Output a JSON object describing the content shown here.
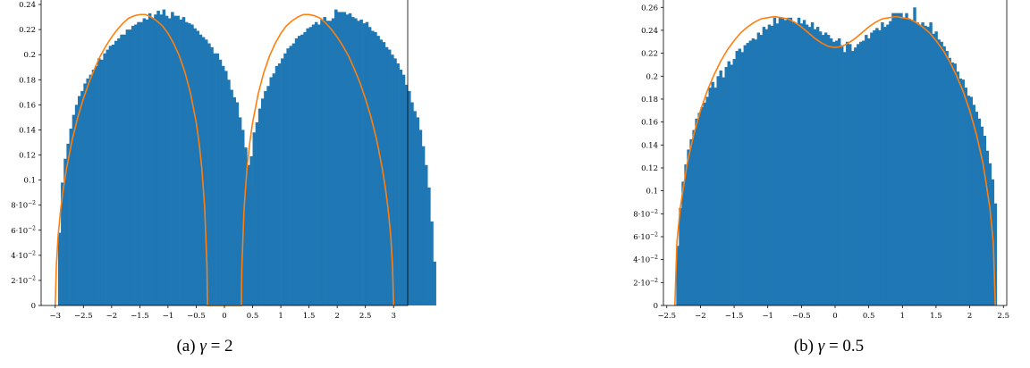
{
  "colors": {
    "bar": "#1f77b4",
    "curve": "#ff7f0e",
    "axis": "#000000"
  },
  "captions": [
    {
      "prefix": "(a) ",
      "symbol": "γ",
      "rest": " = 2"
    },
    {
      "prefix": "(b) ",
      "symbol": "γ",
      "rest": " = 0.5"
    }
  ],
  "chart_data": [
    {
      "type": "bar",
      "title": "",
      "xlabel": "",
      "ylabel": "",
      "xlim": [
        -3.25,
        3.25
      ],
      "ylim": [
        0,
        0.245
      ],
      "grid": false,
      "xticks": [
        -3,
        -2.5,
        -2,
        -1.5,
        -1,
        -0.5,
        0,
        0.5,
        1,
        1.5,
        2,
        2.5,
        3
      ],
      "xtick_labels": [
        "−3",
        "−2.5",
        "−2",
        "−1.5",
        "−1",
        "−0.5",
        "0",
        "0.5",
        "1",
        "1.5",
        "2",
        "2.5",
        "3"
      ],
      "yticks": [
        0,
        0.02,
        0.04,
        0.06,
        0.08,
        0.1,
        0.12,
        0.14,
        0.16,
        0.18,
        0.2,
        0.22,
        0.24
      ],
      "ytick_labels": [
        "0",
        "2·10^−2",
        "4·10^−2",
        "6·10^−2",
        "8·10^−2",
        "0.1",
        "0.12",
        "0.14",
        "0.16",
        "0.18",
        "0.2",
        "0.22",
        "0.24"
      ],
      "histogram": {
        "bin_width": 0.05,
        "bins": [
          {
            "start": -2.95,
            "values": [
              0.058,
              0.098,
              0.117,
              0.129,
              0.141,
              0.152,
              0.16,
              0.167,
              0.171,
              0.177,
              0.181,
              0.184,
              0.188,
              0.191,
              0.197,
              0.196,
              0.201,
              0.204,
              0.207,
              0.208,
              0.211,
              0.213,
              0.216,
              0.216,
              0.22,
              0.22,
              0.223,
              0.224,
              0.226,
              0.226,
              0.229,
              0.228,
              0.233,
              0.229,
              0.232,
              0.235,
              0.232,
              0.236,
              0.231,
              0.229,
              0.234,
              0.231,
              0.231,
              0.228,
              0.23,
              0.226,
              0.225,
              0.224,
              0.221,
              0.219,
              0.216,
              0.214,
              0.212,
              0.209,
              0.206,
              0.201,
              0.201,
              0.196,
              0.191,
              0.187,
              0.18,
              0.172,
              0.166,
              0.162,
              0.15,
              0.14,
              0.126,
              0.112,
              0.093,
              0.065,
              0.033,
              0.004,
              0.003,
              0.001
            ]
          },
          {
            "start": 0.25,
            "values": [
              0.004,
              0.05,
              0.079,
              0.105,
              0.119,
              0.138,
              0.146,
              0.157,
              0.165,
              0.171,
              0.175,
              0.182,
              0.185,
              0.191,
              0.193,
              0.197,
              0.201,
              0.205,
              0.207,
              0.209,
              0.213,
              0.215,
              0.216,
              0.218,
              0.221,
              0.222,
              0.224,
              0.226,
              0.224,
              0.228,
              0.23,
              0.227,
              0.227,
              0.229,
              0.236,
              0.234,
              0.234,
              0.234,
              0.232,
              0.233,
              0.23,
              0.229,
              0.227,
              0.228,
              0.225,
              0.226,
              0.222,
              0.219,
              0.218,
              0.215,
              0.212,
              0.21,
              0.206,
              0.204,
              0.2,
              0.197,
              0.193,
              0.188,
              0.184,
              0.176,
              0.171,
              0.162,
              0.155,
              0.15,
              0.14,
              0.127,
              0.112,
              0.094,
              0.067,
              0.035
            ]
          }
        ]
      },
      "density_curve": {
        "x": [
          -3.0,
          -2.98,
          -2.95,
          -2.9,
          -2.85,
          -2.8,
          -2.7,
          -2.6,
          -2.5,
          -2.4,
          -2.3,
          -2.2,
          -2.1,
          -2.0,
          -1.9,
          -1.8,
          -1.7,
          -1.6,
          -1.5,
          -1.4,
          -1.3,
          -1.2,
          -1.1,
          -1.0,
          -0.9,
          -0.8,
          -0.7,
          -0.6,
          -0.5,
          -0.45,
          -0.4,
          -0.35,
          -0.31,
          -0.3,
          0.0,
          0.3,
          0.31,
          0.35,
          0.4,
          0.45,
          0.5,
          0.6,
          0.7,
          0.8,
          0.9,
          1.0,
          1.1,
          1.2,
          1.3,
          1.4,
          1.5,
          1.6,
          1.7,
          1.8,
          1.9,
          2.0,
          2.1,
          2.2,
          2.3,
          2.4,
          2.5,
          2.6,
          2.7,
          2.8,
          2.85,
          2.9,
          2.95,
          2.98,
          3.0
        ],
        "y": [
          0,
          0.032,
          0.055,
          0.078,
          0.095,
          0.109,
          0.132,
          0.15,
          0.165,
          0.178,
          0.189,
          0.199,
          0.207,
          0.214,
          0.22,
          0.225,
          0.229,
          0.231,
          0.232,
          0.232,
          0.23,
          0.227,
          0.223,
          0.217,
          0.209,
          0.199,
          0.186,
          0.169,
          0.146,
          0.13,
          0.109,
          0.078,
          0.032,
          0,
          0,
          0,
          0.032,
          0.078,
          0.109,
          0.13,
          0.146,
          0.169,
          0.186,
          0.199,
          0.209,
          0.217,
          0.223,
          0.227,
          0.23,
          0.232,
          0.232,
          0.231,
          0.229,
          0.225,
          0.22,
          0.214,
          0.207,
          0.199,
          0.189,
          0.178,
          0.165,
          0.15,
          0.132,
          0.109,
          0.095,
          0.078,
          0.055,
          0.032,
          0
        ]
      }
    },
    {
      "type": "bar",
      "title": "",
      "xlabel": "",
      "ylabel": "",
      "xlim": [
        -2.55,
        2.55
      ],
      "ylim": [
        0,
        0.268
      ],
      "grid": false,
      "xticks": [
        -2.5,
        -2,
        -1.5,
        -1,
        -0.5,
        0,
        0.5,
        1,
        1.5,
        2,
        2.5
      ],
      "xtick_labels": [
        "−2.5",
        "−2",
        "−1.5",
        "−1",
        "−0.5",
        "0",
        "0.5",
        "1",
        "1.5",
        "2",
        "2.5"
      ],
      "yticks": [
        0,
        0.02,
        0.04,
        0.06,
        0.08,
        0.1,
        0.12,
        0.14,
        0.16,
        0.18,
        0.2,
        0.22,
        0.24,
        0.26
      ],
      "ytick_labels": [
        "0",
        "2·10^−2",
        "4·10^−2",
        "6·10^−2",
        "8·10^−2",
        "0.1",
        "0.12",
        "0.14",
        "0.16",
        "0.18",
        "0.2",
        "0.22",
        "0.24",
        "0.26"
      ],
      "histogram": {
        "bin_width": 0.04,
        "bins": [
          {
            "start": -2.36,
            "values": [
              0.052,
              0.085,
              0.108,
              0.123,
              0.136,
              0.145,
              0.153,
              0.163,
              0.168,
              0.173,
              0.177,
              0.182,
              0.19,
              0.195,
              0.19,
              0.2,
              0.205,
              0.199,
              0.208,
              0.213,
              0.21,
              0.215,
              0.222,
              0.224,
              0.221,
              0.227,
              0.229,
              0.231,
              0.233,
              0.232,
              0.238,
              0.236,
              0.243,
              0.241,
              0.245,
              0.244,
              0.251,
              0.246,
              0.251,
              0.251,
              0.249,
              0.251,
              0.251,
              0.247,
              0.246,
              0.251,
              0.246,
              0.249,
              0.245,
              0.243,
              0.247,
              0.241,
              0.243,
              0.239,
              0.236,
              0.238,
              0.236,
              0.233,
              0.23,
              0.231,
              0.233,
              0.227,
              0.221,
              0.23,
              0.228,
              0.222,
              0.225,
              0.228,
              0.23,
              0.231,
              0.236,
              0.233,
              0.238,
              0.24,
              0.242,
              0.24,
              0.247,
              0.243,
              0.245,
              0.248,
              0.255,
              0.255,
              0.255,
              0.255,
              0.251,
              0.255,
              0.25,
              0.249,
              0.26,
              0.247,
              0.245,
              0.247,
              0.244,
              0.243,
              0.247,
              0.237,
              0.239,
              0.232,
              0.23,
              0.226,
              0.222,
              0.216,
              0.212,
              0.211,
              0.204,
              0.198,
              0.197,
              0.19,
              0.183,
              0.182,
              0.175,
              0.169,
              0.163,
              0.156,
              0.148,
              0.135,
              0.124,
              0.11,
              0.089
            ]
          }
        ]
      },
      "density_curve": {
        "x": [
          -2.38,
          -2.35,
          -2.3,
          -2.2,
          -2.1,
          -2.0,
          -1.9,
          -1.8,
          -1.7,
          -1.6,
          -1.5,
          -1.4,
          -1.3,
          -1.2,
          -1.1,
          -1.0,
          -0.9,
          -0.8,
          -0.7,
          -0.6,
          -0.5,
          -0.4,
          -0.3,
          -0.2,
          -0.1,
          0.0,
          0.1,
          0.2,
          0.3,
          0.4,
          0.5,
          0.6,
          0.7,
          0.8,
          0.9,
          1.0,
          1.1,
          1.2,
          1.3,
          1.4,
          1.5,
          1.6,
          1.7,
          1.8,
          1.9,
          2.0,
          2.1,
          2.2,
          2.3,
          2.35,
          2.38
        ],
        "y": [
          0,
          0.055,
          0.085,
          0.123,
          0.149,
          0.17,
          0.187,
          0.201,
          0.213,
          0.223,
          0.231,
          0.238,
          0.243,
          0.247,
          0.25,
          0.251,
          0.252,
          0.251,
          0.25,
          0.247,
          0.243,
          0.238,
          0.233,
          0.229,
          0.226,
          0.225,
          0.226,
          0.229,
          0.233,
          0.238,
          0.243,
          0.247,
          0.25,
          0.251,
          0.252,
          0.251,
          0.25,
          0.247,
          0.243,
          0.238,
          0.231,
          0.223,
          0.213,
          0.201,
          0.187,
          0.17,
          0.149,
          0.123,
          0.085,
          0.055,
          0
        ]
      }
    }
  ]
}
